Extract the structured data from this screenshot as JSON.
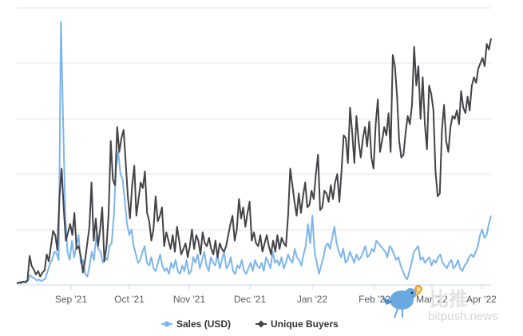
{
  "chart_data": {
    "type": "line",
    "title": "",
    "xlabel": "",
    "ylabel": "",
    "x_tick_labels": [
      "Sep '21",
      "Oct '21",
      "Nov '21",
      "Dec '21",
      "Jan '22",
      "Feb '22",
      "Mar '22",
      "Apr '22"
    ],
    "grid": "horizontal",
    "legend_position": "bottom",
    "series": [
      {
        "name": "Sales (USD)",
        "color": "#7cb5ec",
        "values": [
          0.5,
          0.8,
          1.2,
          1.0,
          1.4,
          1.5,
          3.5,
          2.8,
          2.4,
          1.6,
          2.0,
          1.4,
          1.8,
          2.2,
          5.0,
          7.5,
          9.0,
          12.0,
          11.5,
          9.0,
          95.0,
          60.0,
          25.0,
          12.0,
          9.0,
          16.0,
          10.0,
          14.0,
          18.0,
          8.0,
          9.0,
          4.0,
          3.0,
          7.0,
          12.0,
          9.0,
          18.0,
          13.0,
          12.0,
          8.0,
          10.0,
          9.0,
          14.0,
          15.0,
          25.0,
          42.0,
          48.0,
          40.0,
          38.0,
          30.0,
          22.0,
          18.0,
          20.0,
          14.0,
          11.0,
          8.0,
          9.0,
          12.0,
          14.0,
          8.0,
          7.0,
          10.0,
          6.0,
          5.0,
          8.0,
          11.0,
          7.0,
          5.0,
          6.0,
          4.0,
          8.0,
          6.0,
          9.0,
          5.0,
          4.0,
          7.0,
          5.0,
          9.0,
          4.0,
          5.0,
          10.0,
          8.0,
          11.0,
          6.0,
          9.0,
          12.0,
          7.0,
          5.0,
          10.0,
          8.0,
          7.0,
          11.0,
          6.0,
          9.0,
          12.0,
          6.0,
          7.0,
          10.0,
          5.0,
          4.0,
          7.0,
          6.0,
          9.0,
          5.0,
          4.0,
          6.0,
          8.0,
          5.0,
          9.0,
          7.0,
          6.0,
          8.0,
          5.0,
          10.0,
          8.0,
          6.0,
          12.0,
          8.0,
          9.0,
          7.0,
          10.0,
          6.0,
          8.0,
          11.0,
          9.0,
          8.0,
          13.0,
          10.0,
          9.0,
          7.0,
          11.0,
          14.0,
          22.0,
          15.0,
          25.0,
          12.0,
          8.0,
          4.0,
          7.0,
          10.0,
          14.0,
          15.0,
          13.0,
          17.0,
          21.0,
          15.0,
          12.0,
          10.0,
          13.0,
          8.0,
          9.0,
          12.0,
          10.0,
          8.0,
          11.0,
          9.0,
          10.0,
          12.0,
          14.0,
          10.0,
          11.0,
          13.0,
          12.0,
          16.0,
          15.0,
          14.0,
          13.0,
          12.0,
          10.0,
          14.0,
          13.0,
          11.0,
          9.0,
          10.0,
          7.0,
          5.0,
          3.0,
          2.0,
          5.0,
          8.0,
          12.0,
          13.0,
          14.0,
          9.0,
          10.0,
          8.0,
          9.0,
          10.0,
          7.0,
          9.0,
          8.0,
          10.0,
          11.0,
          8.0,
          7.0,
          6.0,
          8.0,
          9.0,
          6.0,
          7.0,
          9.0,
          6.0,
          5.0,
          7.0,
          8.0,
          10.0,
          11.0,
          10.0,
          12.0,
          14.0,
          18.0,
          20.0,
          17.0,
          18.0,
          22.0,
          25.0
        ],
        "source_canvas_note": ""
      },
      {
        "name": "Unique Buyers",
        "color": "#434348",
        "values": [
          0.5,
          0.9,
          0.7,
          1.2,
          0.9,
          1.5,
          10.5,
          6.8,
          5.5,
          3.8,
          5.0,
          3.0,
          4.5,
          5.2,
          11.0,
          8.5,
          14.0,
          19.5,
          18.0,
          12.5,
          32.0,
          42.0,
          27.0,
          16.0,
          19.0,
          22.0,
          18.0,
          26.0,
          13.0,
          14.0,
          10.0,
          4.5,
          9.0,
          15.0,
          21.0,
          37.0,
          16.0,
          24.0,
          14.0,
          20.0,
          28.0,
          8.5,
          14.0,
          26.0,
          52.0,
          38.0,
          36.0,
          57.0,
          48.0,
          53.0,
          56.0,
          44.0,
          32.0,
          24.0,
          36.0,
          43.0,
          25.0,
          31.0,
          37.0,
          35.0,
          41.0,
          26.0,
          23.0,
          16.0,
          20.0,
          32.0,
          23.0,
          25.0,
          28.0,
          14.0,
          19.0,
          16.0,
          13.0,
          18.0,
          12.0,
          21.0,
          16.0,
          11.0,
          13.0,
          15.0,
          10.0,
          14.0,
          20.0,
          13.0,
          18.0,
          16.0,
          11.0,
          19.0,
          15.0,
          14.0,
          17.0,
          13.0,
          11.0,
          16.0,
          10.0,
          15.0,
          13.0,
          12.0,
          14.0,
          18.0,
          22.0,
          25.0,
          16.0,
          20.0,
          31.0,
          24.0,
          28.0,
          21.0,
          26.0,
          30.0,
          16.0,
          19.0,
          15.0,
          14.0,
          18.0,
          12.0,
          15.0,
          18.0,
          14.0,
          11.0,
          16.0,
          12.0,
          18.0,
          13.0,
          17.0,
          15.0,
          14.0,
          25.0,
          42.0,
          36.0,
          30.0,
          25.0,
          33.0,
          26.0,
          32.0,
          37.0,
          28.0,
          29.0,
          34.0,
          31.0,
          40.0,
          47.0,
          27.0,
          28.0,
          34.0,
          33.0,
          30.0,
          36.0,
          31.0,
          37.0,
          40.0,
          30.0,
          41.0,
          54.0,
          53.0,
          44.0,
          64.0,
          55.0,
          44.0,
          61.0,
          52.0,
          46.0,
          53.0,
          57.0,
          50.0,
          59.0,
          46.0,
          42.0,
          58.0,
          67.0,
          48.0,
          52.0,
          57.0,
          54.0,
          62.0,
          48.0,
          83.0,
          79.0,
          68.0,
          52.0,
          46.0,
          47.0,
          55.0,
          61.0,
          58.0,
          65.0,
          86.0,
          72.0,
          79.0,
          60.0,
          75.0,
          58.0,
          49.0,
          72.0,
          69.0,
          63.0,
          41.0,
          32.0,
          33.0,
          56.0,
          65.0,
          52.0,
          48.0,
          57.0,
          61.0,
          60.0,
          63.0,
          58.0,
          70.0,
          64.0,
          62.0,
          68.0,
          63.0,
          72.0,
          75.0,
          73.0,
          78.0,
          80.0,
          82.0,
          79.0,
          87.0,
          85.0,
          89.0
        ],
        "source_canvas_note": ""
      }
    ]
  },
  "legend": {
    "items": [
      "Sales (USD)",
      "Unique Buyers"
    ]
  },
  "watermark": {
    "logo_text": "比推",
    "url_text": "bitpush.news"
  }
}
